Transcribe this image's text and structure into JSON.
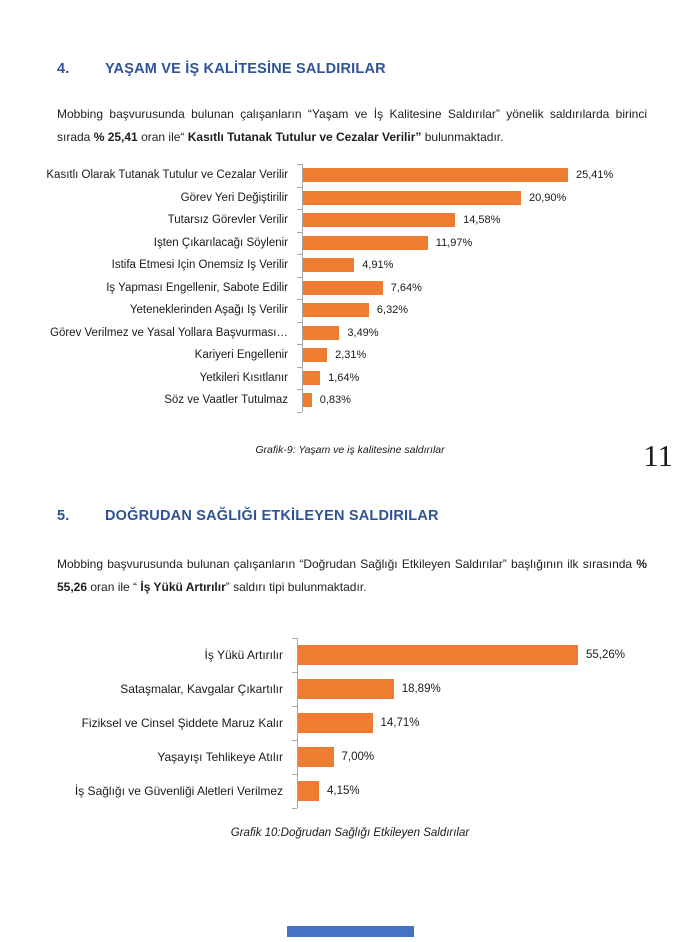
{
  "page_number": "11",
  "colors": {
    "heading": "#2F5496",
    "bar": "#ED7D31",
    "axis": "#A6A6A6",
    "footer_bar": "#4472C4"
  },
  "sections": [
    {
      "number": "4.",
      "title": "YAŞAM VE İŞ KALİTESİNE SALDIRILAR",
      "paragraph_runs": [
        {
          "text": "Mobbing başvurusunda bulunan çalışanların “Yaşam ve İş Kalitesine Saldırılar” yönelik saldırılarda birinci sırada ",
          "bold": false
        },
        {
          "text": "% 25,41",
          "bold": true
        },
        {
          "text": " oran ile“ ",
          "bold": false
        },
        {
          "text": "Kasıtlı Tutanak Tutulur ve Cezalar Verilir”",
          "bold": true
        },
        {
          "text": " bulunmaktadır.",
          "bold": false
        }
      ],
      "caption": "Grafik-9: Yaşam ve iş kalitesine saldırılar"
    },
    {
      "number": "5.",
      "title": "DOĞRUDAN SAĞLIĞI ETKİLEYEN SALDIRILAR",
      "paragraph_runs": [
        {
          "text": "Mobbing başvurusunda bulunan çalışanların “Doğrudan Sağlığı Etkileyen Saldırılar” başlığının ilk sırasında ",
          "bold": false
        },
        {
          "text": "% 55,26",
          "bold": true
        },
        {
          "text": " oran ile “ ",
          "bold": false
        },
        {
          "text": "İş Yükü Artırılır",
          "bold": true
        },
        {
          "text": "” saldırı tipi bulunmaktadır.",
          "bold": false
        }
      ],
      "caption": "Grafik 10:Doğrudan Sağlığı Etkileyen Saldırılar"
    }
  ],
  "chart_data": [
    {
      "type": "bar",
      "orientation": "horizontal",
      "title": "",
      "xlabel": "",
      "ylabel": "",
      "grid": false,
      "legend": false,
      "data_labels": true,
      "bar_color": "#ED7D31",
      "xlim": [
        0,
        30
      ],
      "categories": [
        "Kasıtlı Olarak Tutanak Tutulur ve Cezalar Verilir",
        "Görev Yeri Değiştirilir",
        "Tutarsız Görevler Verilir",
        "İşten Çıkarılacağı Söylenir",
        "İstifa Etmesi İçin Önemsiz İş Verilir",
        "İş Yapması Engellenir, Sabote Edilir",
        "Yeteneklerinden Aşağı İş Verilir",
        "Görev Verilmez ve Yasal Yollara Başvurması…",
        "Kariyeri Engellenir",
        "Yetkileri Kısıtlanır",
        "Söz ve Vaatler Tutulmaz"
      ],
      "values": [
        25.41,
        20.9,
        14.58,
        11.97,
        4.91,
        7.64,
        6.32,
        3.49,
        2.31,
        1.64,
        0.83
      ],
      "value_labels": [
        "25,41%",
        "20,90%",
        "14,58%",
        "11,97%",
        "4,91%",
        "7,64%",
        "6,32%",
        "3,49%",
        "2,31%",
        "1,64%",
        "0,83%"
      ]
    },
    {
      "type": "bar",
      "orientation": "horizontal",
      "title": "",
      "xlabel": "",
      "ylabel": "",
      "grid": false,
      "legend": false,
      "data_labels": true,
      "bar_color": "#ED7D31",
      "xlim": [
        0,
        60
      ],
      "categories": [
        "İş Yükü Artırılır",
        "Sataşmalar, Kavgalar Çıkartılır",
        "Fiziksel ve Cinsel Şiddete Maruz Kalır",
        "Yaşayışı Tehlikeye Atılır",
        "İş Sağlığı ve Güvenliği Aletleri Verilmez"
      ],
      "values": [
        55.26,
        18.89,
        14.71,
        7.0,
        4.15
      ],
      "value_labels": [
        "55,26%",
        "18,89%",
        "14,71%",
        "7,00%",
        "4,15%"
      ]
    }
  ]
}
